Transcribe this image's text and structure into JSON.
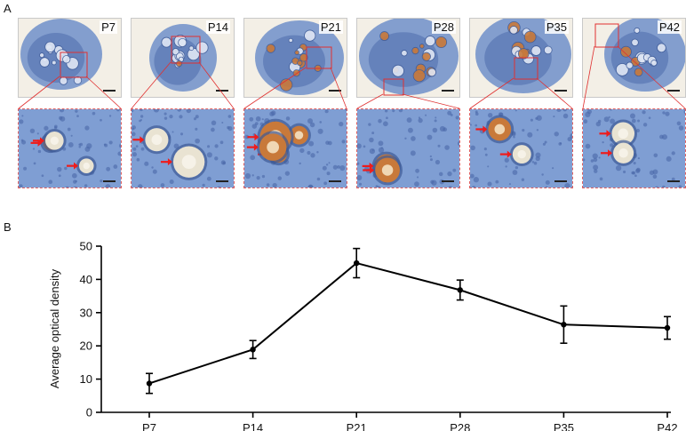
{
  "panels": {
    "a_label": "A",
    "b_label": "B"
  },
  "micrographs": [
    {
      "label": "P7"
    },
    {
      "label": "P14"
    },
    {
      "label": "P21"
    },
    {
      "label": "P28"
    },
    {
      "label": "P35"
    },
    {
      "label": "P42"
    }
  ],
  "colors": {
    "tissue_blue": "#6f8fc9",
    "stain_brown": "#c8793a",
    "box_red": "#e03030",
    "arrow_red": "#ee1c1c",
    "line": "#000000"
  },
  "chart_data": {
    "type": "line",
    "categories": [
      "P7",
      "P14",
      "P21",
      "P28",
      "P35",
      "P42"
    ],
    "values": [
      8.7,
      18.9,
      44.9,
      36.8,
      26.4,
      25.4
    ],
    "errors": [
      3.0,
      2.7,
      4.4,
      3.0,
      5.6,
      3.4
    ],
    "ylabel": "Average optical density",
    "xlabel": "",
    "ylim": [
      0,
      50
    ],
    "yticks": [
      0,
      10,
      20,
      30,
      40,
      50
    ],
    "grid": false,
    "legend": "none"
  }
}
